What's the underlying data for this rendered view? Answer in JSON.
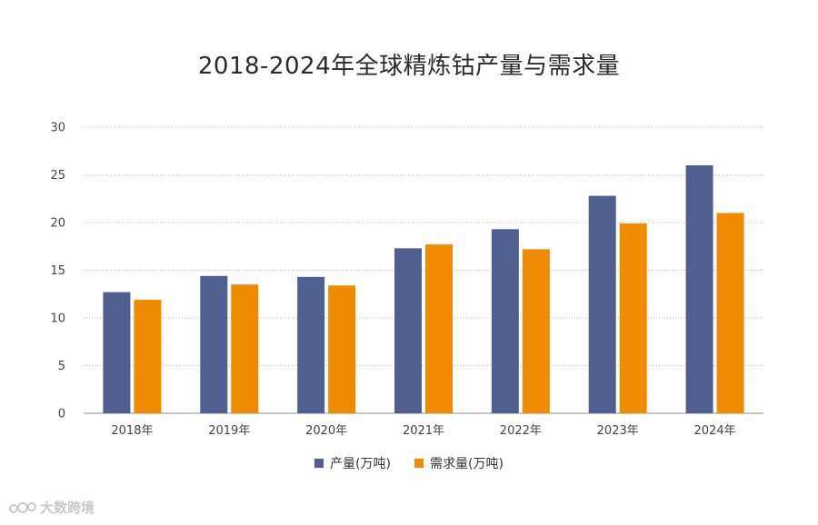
{
  "chart_data": {
    "type": "bar",
    "title": "2018-2024年全球精炼钴产量与需求量",
    "xlabel": "",
    "ylabel": "",
    "categories": [
      "2018年",
      "2019年",
      "2020年",
      "2021年",
      "2022年",
      "2023年",
      "2024年"
    ],
    "series": [
      {
        "name": "产量(万吨)",
        "color": "#4f5f8f",
        "values": [
          12.7,
          14.4,
          14.3,
          17.3,
          19.3,
          22.8,
          26.0
        ]
      },
      {
        "name": "需求量(万吨)",
        "color": "#f08a00",
        "values": [
          11.9,
          13.5,
          13.4,
          17.7,
          17.2,
          19.9,
          21.0
        ]
      }
    ],
    "ylim": [
      0,
      30
    ],
    "yticks": [
      0,
      5,
      10,
      15,
      20,
      25,
      30
    ],
    "grid": true,
    "gridline_style": "dotted",
    "legend_position": "bottom-center"
  },
  "watermark": {
    "text": "大数跨境",
    "icon": "brand-logo-icon"
  }
}
